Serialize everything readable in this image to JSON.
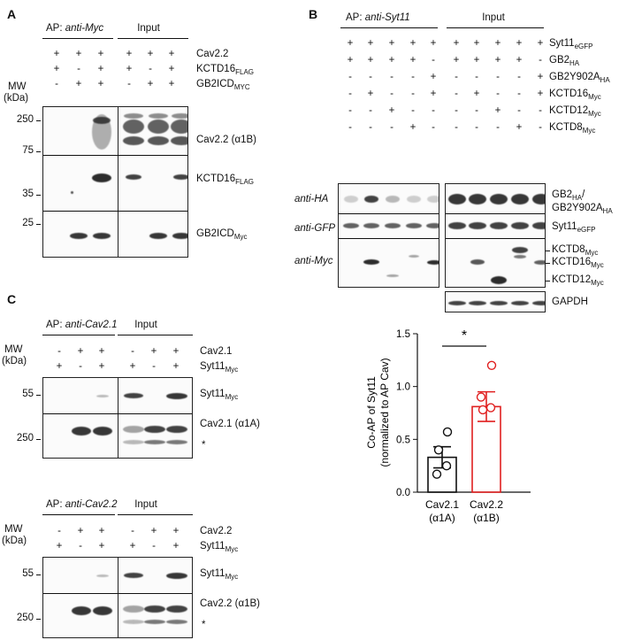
{
  "panelA": {
    "label": "A",
    "ap_prefix": "AP: ",
    "ap_antibody": "anti-Myc",
    "input": "Input",
    "rows": [
      {
        "name": "Cav2.2",
        "signs": [
          "+",
          "+",
          "+",
          "+",
          "+",
          "+"
        ]
      },
      {
        "name": "KCTD16",
        "sub": "FLAG",
        "signs": [
          "+",
          "-",
          "+",
          "+",
          "-",
          "+"
        ]
      },
      {
        "name": "GB2ICD",
        "sub": "MYC",
        "signs": [
          "-",
          "+",
          "+",
          "-",
          "+",
          "+"
        ]
      }
    ],
    "mw_label": "MW",
    "mw_unit": "(kDa)",
    "mw": [
      "250",
      "75",
      "35",
      "25"
    ],
    "blots": [
      {
        "name": "Cav2.2 (α1B)"
      },
      {
        "name": "KCTD16",
        "sub": "FLAG"
      },
      {
        "name": "GB2ICD",
        "sub": "Myc"
      }
    ]
  },
  "panelB": {
    "label": "B",
    "ap_prefix": "AP: ",
    "ap_antibody": "anti-Syt11",
    "input": "Input",
    "rows": [
      {
        "name": "Syt11",
        "sub": "eGFP",
        "signs": [
          "+",
          "+",
          "+",
          "+",
          "+",
          "+",
          "+",
          "+",
          "+",
          "+"
        ]
      },
      {
        "name": "GB2",
        "sub": "HA",
        "signs": [
          "+",
          "+",
          "+",
          "+",
          "-",
          "+",
          "+",
          "+",
          "+",
          "-"
        ]
      },
      {
        "name": "GB2Y902A",
        "sub": "HA",
        "signs": [
          "-",
          "-",
          "-",
          "-",
          "+",
          "-",
          "-",
          "-",
          "-",
          "+"
        ]
      },
      {
        "name": "KCTD16",
        "sub": "Myc",
        "signs": [
          "-",
          "+",
          "-",
          "-",
          "+",
          "-",
          "+",
          "-",
          "-",
          "+"
        ]
      },
      {
        "name": "KCTD12",
        "sub": "Myc",
        "signs": [
          "-",
          "-",
          "+",
          "-",
          "-",
          "-",
          "-",
          "+",
          "-",
          "-"
        ]
      },
      {
        "name": "KCTD8",
        "sub": "Myc",
        "signs": [
          "-",
          "-",
          "-",
          "+",
          "-",
          "-",
          "-",
          "-",
          "+",
          "-"
        ]
      }
    ],
    "antibodies": [
      "anti-HA",
      "anti-GFP",
      "anti-Myc"
    ],
    "blot_labels": {
      "ha_1": "GB2",
      "ha_1_sub": "HA",
      "ha_slash": "/",
      "ha_2": "GB2Y902A",
      "ha_2_sub": "HA",
      "gfp": "Syt11",
      "gfp_sub": "eGFP",
      "myc_a": "KCTD8",
      "myc_a_sub": "Myc",
      "myc_b": "KCTD16",
      "myc_b_sub": "Myc",
      "myc_c": "KCTD12",
      "myc_c_sub": "Myc",
      "gapdh": "GAPDH"
    }
  },
  "panelC": {
    "label": "C",
    "blot1": {
      "ap_prefix": "AP: ",
      "ap_antibody": "anti-Cav2.1",
      "input": "Input",
      "rows": [
        {
          "name": "Cav2.1",
          "signs": [
            "-",
            "+",
            "+",
            "-",
            "+",
            "+"
          ]
        },
        {
          "name": "Syt11",
          "sub": "Myc",
          "signs": [
            "+",
            "-",
            "+",
            "+",
            "-",
            "+"
          ]
        }
      ],
      "mw": [
        "55",
        "250"
      ],
      "band_labels": [
        {
          "name": "Syt11",
          "sub": "Myc"
        },
        {
          "name": "Cav2.1 (α1A)"
        }
      ],
      "asterisk": "*"
    },
    "blot2": {
      "ap_prefix": "AP: ",
      "ap_antibody": "anti-Cav2.2",
      "input": "Input",
      "rows": [
        {
          "name": "Cav2.2",
          "signs": [
            "-",
            "+",
            "+",
            "-",
            "+",
            "+"
          ]
        },
        {
          "name": "Syt11",
          "sub": "Myc",
          "signs": [
            "+",
            "-",
            "+",
            "+",
            "-",
            "+"
          ]
        }
      ],
      "mw": [
        "55",
        "250"
      ],
      "band_labels": [
        {
          "name": "Syt11",
          "sub": "Myc"
        },
        {
          "name": "Cav2.2 (α1B)"
        }
      ],
      "asterisk": "*"
    },
    "mw_label": "MW",
    "mw_unit": "(kDa)"
  },
  "chart_data": {
    "type": "bar",
    "categories": [
      "Cav2.1\n(α1A)",
      "Cav2.2\n(α1B)"
    ],
    "series": [
      {
        "values": [
          0.33,
          0.81
        ],
        "sem": [
          0.1,
          0.14
        ],
        "color": "#111111",
        "points": [
          [
            0.17,
            0.57,
            0.4,
            0.25
          ],
          [
            0.9,
            1.2,
            0.78,
            0.8
          ]
        ]
      }
    ],
    "bar_colors": [
      "#111111",
      "#e02020"
    ],
    "ylabel_line1": "Co-AP of Syt11",
    "ylabel_line2": "(normalized to AP Cav)",
    "ylim": [
      0,
      1.5
    ],
    "yticks": [
      "0.0",
      "0.5",
      "1.0",
      "1.5"
    ],
    "significance": "*"
  }
}
